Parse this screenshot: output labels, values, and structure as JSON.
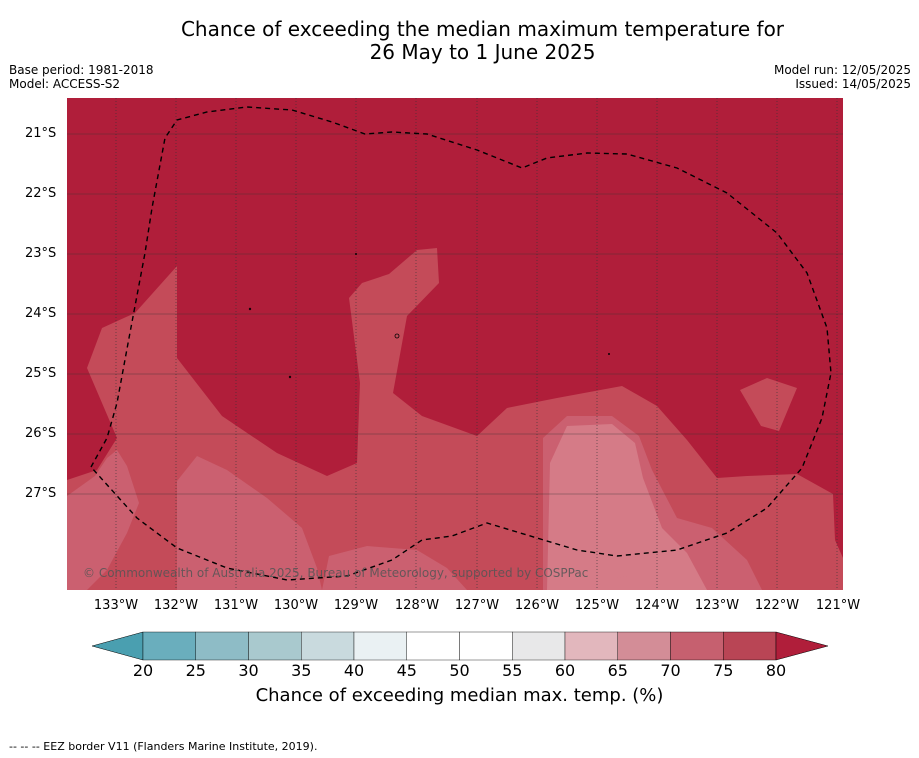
{
  "title_line1": "Chance of exceeding the median maximum temperature for",
  "title_line2": "26 May to 1 June 2025",
  "base_period": "Base period: 1981-2018",
  "model": "Model: ACCESS-S2",
  "model_run": "Model run: 12/05/2025",
  "issued": "Issued: 14/05/2025",
  "copyright": "© Commonwealth of Australia 2025, Bureau of Meteorology, supported by COSPPac",
  "latitudes": [
    "21°S",
    "22°S",
    "23°S",
    "24°S",
    "25°S",
    "26°S",
    "27°S"
  ],
  "longitudes": [
    "133°W",
    "132°W",
    "131°W",
    "130°W",
    "129°W",
    "128°W",
    "127°W",
    "126°W",
    "125°W",
    "124°W",
    "123°W",
    "122°W",
    "121°W"
  ],
  "colorbar": {
    "ticks": [
      "20",
      "25",
      "30",
      "35",
      "40",
      "45",
      "50",
      "55",
      "60",
      "65",
      "70",
      "75",
      "80"
    ],
    "colors": [
      "#6aaebd",
      "#8ebcc6",
      "#a9c9ce",
      "#c9dade",
      "#eaf1f3",
      "#ffffff",
      "#ffffff",
      "#e8e8e9",
      "#e2b7bd",
      "#d38d97",
      "#c6606f",
      "#b94555"
    ],
    "low_extend_color": "#4a9fb0",
    "high_extend_color": "#b01e3a",
    "label": "Chance of exceeding median max. temp. (%)"
  },
  "map_colors": {
    "above_80": "#b01e3a",
    "band_75_80": "#c44b59",
    "band_70_75": "#cb6070",
    "band_65_70": "#d57b87"
  },
  "legend_footer": "--  --  -- EEZ border V11 (Flanders Marine Institute, 2019)."
}
